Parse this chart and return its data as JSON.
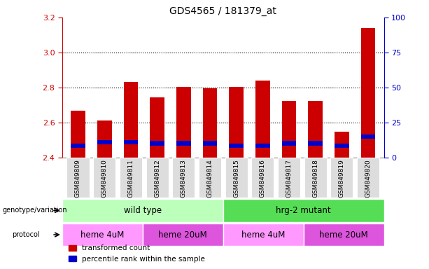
{
  "title": "GDS4565 / 181379_at",
  "samples": [
    "GSM849809",
    "GSM849810",
    "GSM849811",
    "GSM849812",
    "GSM849813",
    "GSM849814",
    "GSM849815",
    "GSM849816",
    "GSM849817",
    "GSM849818",
    "GSM849819",
    "GSM849820"
  ],
  "red_values": [
    2.665,
    2.61,
    2.83,
    2.745,
    2.805,
    2.795,
    2.805,
    2.84,
    2.725,
    2.725,
    2.545,
    3.14
  ],
  "blue_values": [
    2.455,
    2.475,
    2.475,
    2.468,
    2.468,
    2.468,
    2.455,
    2.455,
    2.468,
    2.468,
    2.455,
    2.505
  ],
  "blue_heights": [
    0.025,
    0.025,
    0.025,
    0.025,
    0.025,
    0.025,
    0.025,
    0.025,
    0.025,
    0.025,
    0.025,
    0.025
  ],
  "bar_bottom": 2.4,
  "ylim": [
    2.4,
    3.2
  ],
  "yticks_left": [
    2.4,
    2.6,
    2.8,
    3.0,
    3.2
  ],
  "yticks_right": [
    0,
    25,
    50,
    75,
    100
  ],
  "right_ylim": [
    0,
    100
  ],
  "grid_values": [
    2.6,
    2.8,
    3.0
  ],
  "genotype_groups": [
    {
      "label": "wild type",
      "start": 0,
      "end": 6,
      "color": "#bbffbb"
    },
    {
      "label": "hrg-2 mutant",
      "start": 6,
      "end": 12,
      "color": "#55dd55"
    }
  ],
  "protocol_groups": [
    {
      "label": "heme 4uM",
      "start": 0,
      "end": 3,
      "color": "#ff99ff"
    },
    {
      "label": "heme 20uM",
      "start": 3,
      "end": 6,
      "color": "#dd55dd"
    },
    {
      "label": "heme 4uM",
      "start": 6,
      "end": 9,
      "color": "#ff99ff"
    },
    {
      "label": "heme 20uM",
      "start": 9,
      "end": 12,
      "color": "#dd55dd"
    }
  ],
  "bar_width": 0.55,
  "red_color": "#cc0000",
  "blue_color": "#0000cc",
  "legend_red": "transformed count",
  "legend_blue": "percentile rank within the sample",
  "left_tick_color": "#cc0000",
  "right_tick_color": "#0000cc",
  "bg_color": "#dddddd",
  "fig_width": 6.13,
  "fig_height": 3.84,
  "dpi": 100
}
